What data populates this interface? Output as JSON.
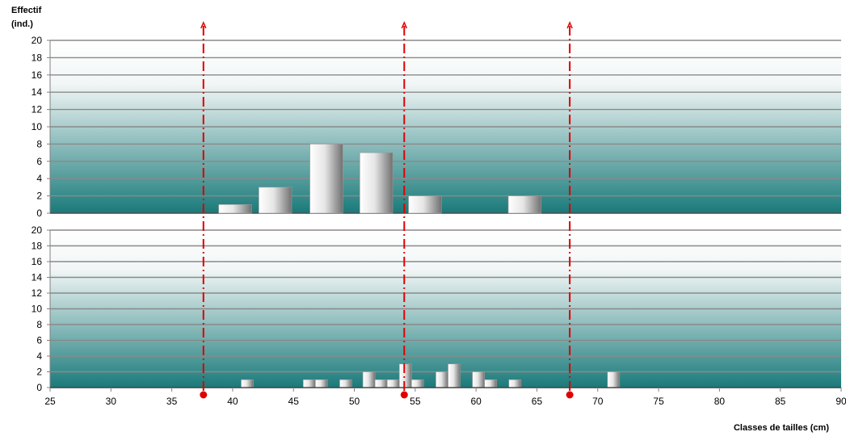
{
  "chart_data": {
    "type": "bar",
    "ylabel_line1": "Effectif",
    "ylabel_line2": "(ind.)",
    "xlabel": "Classes de tailles (cm)",
    "xlim": [
      25,
      90
    ],
    "xticks": [
      25,
      30,
      35,
      40,
      45,
      50,
      55,
      60,
      65,
      70,
      75,
      80,
      85,
      90
    ],
    "ylim": [
      0,
      20
    ],
    "yticks": [
      0,
      2,
      4,
      6,
      8,
      10,
      12,
      14,
      16,
      18,
      20
    ],
    "grid": true,
    "colors": {
      "background_top": "#ffffff",
      "background_bottom": "#1a7a7a",
      "gridline": "#8a8a8a",
      "bar_light": "#ffffff",
      "bar_dark": "#707070",
      "marker": "#e00000"
    },
    "panels": [
      {
        "bin_width": 2.7,
        "bars": [
          {
            "x": 40.2,
            "value": 1
          },
          {
            "x": 43.5,
            "value": 3
          },
          {
            "x": 47.7,
            "value": 8
          },
          {
            "x": 51.8,
            "value": 7
          },
          {
            "x": 55.8,
            "value": 2
          },
          {
            "x": 64.0,
            "value": 2
          }
        ]
      },
      {
        "bin_width": 1.0,
        "bars": [
          {
            "x": 41.2,
            "value": 1
          },
          {
            "x": 46.3,
            "value": 1
          },
          {
            "x": 47.3,
            "value": 1
          },
          {
            "x": 49.3,
            "value": 1
          },
          {
            "x": 51.2,
            "value": 2
          },
          {
            "x": 52.2,
            "value": 1
          },
          {
            "x": 53.2,
            "value": 1
          },
          {
            "x": 54.2,
            "value": 3
          },
          {
            "x": 55.2,
            "value": 1
          },
          {
            "x": 57.2,
            "value": 2
          },
          {
            "x": 58.2,
            "value": 3
          },
          {
            "x": 60.2,
            "value": 2
          },
          {
            "x": 61.2,
            "value": 1
          },
          {
            "x": 63.2,
            "value": 1
          },
          {
            "x": 71.3,
            "value": 2
          }
        ]
      }
    ],
    "reference_lines": [
      {
        "x": 37.6
      },
      {
        "x": 54.1
      },
      {
        "x": 67.7
      }
    ]
  }
}
